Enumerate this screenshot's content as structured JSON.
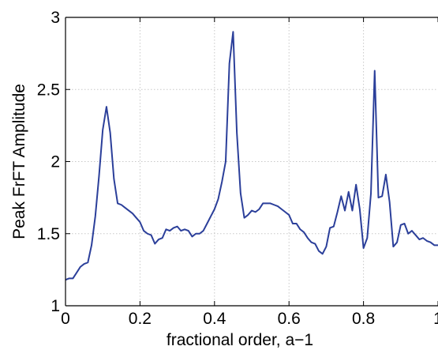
{
  "chart_data": {
    "type": "line",
    "title": "",
    "xlabel": "fractional order, a−1",
    "ylabel": "Peak FrFT Amplitude",
    "xlim": [
      0,
      1
    ],
    "ylim": [
      1,
      3
    ],
    "grid": true,
    "x_ticks": [
      {
        "value": 0,
        "label": "0"
      },
      {
        "value": 0.2,
        "label": "0.2"
      },
      {
        "value": 0.4,
        "label": "0.4"
      },
      {
        "value": 0.6,
        "label": "0.6"
      },
      {
        "value": 0.8,
        "label": "0.8"
      },
      {
        "value": 1,
        "label": "1"
      }
    ],
    "y_ticks": [
      {
        "value": 1,
        "label": "1"
      },
      {
        "value": 1.5,
        "label": "1.5"
      },
      {
        "value": 2,
        "label": "2"
      },
      {
        "value": 2.5,
        "label": "2.5"
      },
      {
        "value": 3,
        "label": "3"
      }
    ],
    "series": [
      {
        "color": "#2b3f9a",
        "x": [
          0,
          0.01,
          0.02,
          0.03,
          0.04,
          0.05,
          0.06,
          0.07,
          0.08,
          0.09,
          0.1,
          0.11,
          0.12,
          0.13,
          0.14,
          0.15,
          0.16,
          0.17,
          0.18,
          0.19,
          0.2,
          0.21,
          0.22,
          0.23,
          0.24,
          0.25,
          0.26,
          0.27,
          0.28,
          0.29,
          0.3,
          0.31,
          0.32,
          0.33,
          0.34,
          0.35,
          0.36,
          0.37,
          0.38,
          0.39,
          0.4,
          0.41,
          0.42,
          0.43,
          0.44,
          0.45,
          0.46,
          0.47,
          0.48,
          0.49,
          0.5,
          0.51,
          0.52,
          0.53,
          0.54,
          0.55,
          0.56,
          0.57,
          0.58,
          0.59,
          0.6,
          0.61,
          0.62,
          0.63,
          0.64,
          0.65,
          0.66,
          0.67,
          0.68,
          0.69,
          0.7,
          0.71,
          0.72,
          0.73,
          0.74,
          0.75,
          0.76,
          0.77,
          0.78,
          0.79,
          0.8,
          0.81,
          0.82,
          0.83,
          0.84,
          0.85,
          0.86,
          0.87,
          0.88,
          0.89,
          0.9,
          0.91,
          0.92,
          0.93,
          0.94,
          0.95,
          0.96,
          0.97,
          0.98,
          0.99,
          1
        ],
        "values": [
          1.18,
          1.19,
          1.19,
          1.23,
          1.27,
          1.29,
          1.3,
          1.42,
          1.62,
          1.9,
          2.22,
          2.38,
          2.2,
          1.88,
          1.71,
          1.7,
          1.68,
          1.66,
          1.64,
          1.61,
          1.58,
          1.52,
          1.5,
          1.49,
          1.43,
          1.46,
          1.47,
          1.53,
          1.52,
          1.54,
          1.55,
          1.52,
          1.53,
          1.52,
          1.48,
          1.5,
          1.5,
          1.52,
          1.57,
          1.62,
          1.67,
          1.74,
          1.86,
          2.0,
          2.68,
          2.9,
          2.2,
          1.78,
          1.61,
          1.63,
          1.66,
          1.65,
          1.67,
          1.71,
          1.71,
          1.71,
          1.7,
          1.69,
          1.67,
          1.65,
          1.63,
          1.57,
          1.57,
          1.53,
          1.51,
          1.47,
          1.44,
          1.43,
          1.38,
          1.36,
          1.41,
          1.54,
          1.55,
          1.65,
          1.76,
          1.66,
          1.79,
          1.66,
          1.84,
          1.67,
          1.4,
          1.47,
          1.78,
          2.63,
          1.75,
          1.76,
          1.91,
          1.72,
          1.41,
          1.44,
          1.56,
          1.57,
          1.5,
          1.52,
          1.49,
          1.46,
          1.47,
          1.45,
          1.44,
          1.42,
          1.42
        ]
      }
    ]
  }
}
